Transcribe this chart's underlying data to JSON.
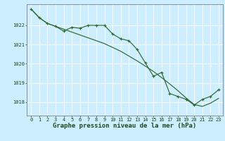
{
  "xlabel": "Graphe pression niveau de la mer (hPa)",
  "bg_color": "#cceeff",
  "grid_color": "#ffffff",
  "line_color": "#2d6a2d",
  "xlim": [
    -0.5,
    23.5
  ],
  "ylim": [
    1017.3,
    1023.1
  ],
  "yticks": [
    1018,
    1019,
    1020,
    1021,
    1022
  ],
  "xticks": [
    0,
    1,
    2,
    3,
    4,
    5,
    6,
    7,
    8,
    9,
    10,
    11,
    12,
    13,
    14,
    15,
    16,
    17,
    18,
    19,
    20,
    21,
    22,
    23
  ],
  "series1_x": [
    0,
    1,
    2,
    3,
    4,
    5,
    6,
    7,
    8,
    9,
    10,
    11,
    12,
    13,
    14,
    15,
    16,
    17,
    18,
    19,
    20,
    21,
    22,
    23
  ],
  "series1_y": [
    1022.85,
    1022.4,
    1022.1,
    1021.95,
    1021.8,
    1021.65,
    1021.5,
    1021.35,
    1021.2,
    1021.05,
    1020.85,
    1020.65,
    1020.4,
    1020.15,
    1019.88,
    1019.6,
    1019.28,
    1018.95,
    1018.6,
    1018.22,
    1017.88,
    1017.78,
    1017.95,
    1018.2
  ],
  "series2_x": [
    0,
    1,
    2,
    3,
    4,
    5,
    6,
    7,
    8,
    9,
    10,
    11,
    12,
    13,
    14,
    15,
    16,
    17,
    18,
    19,
    20,
    21,
    22,
    23
  ],
  "series2_y": [
    1022.85,
    1022.4,
    1022.1,
    1021.95,
    1021.7,
    1021.9,
    1021.85,
    1022.0,
    1022.0,
    1022.0,
    1021.55,
    1021.3,
    1021.2,
    1020.75,
    1020.05,
    1019.35,
    1019.55,
    1018.45,
    1018.3,
    1018.15,
    1017.85,
    1018.15,
    1018.3,
    1018.65
  ],
  "ylabel_fontsize": 6.5,
  "tick_fontsize": 5.0,
  "tick_color": "#1a4a1a",
  "spine_color": "#808080"
}
